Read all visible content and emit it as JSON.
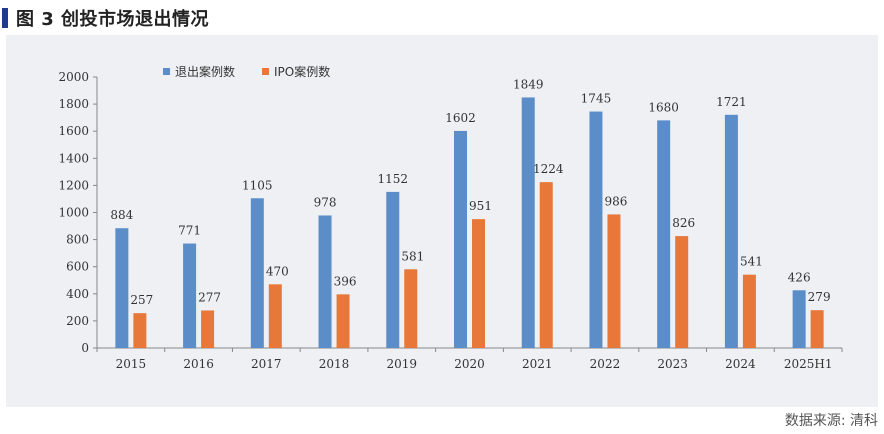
{
  "header": {
    "title": "图 3  创投市场退出情况"
  },
  "footer": {
    "source": "数据来源: 清科"
  },
  "colors": {
    "series1": "#5b8ec9",
    "series2": "#e7783a"
  },
  "chart_data": {
    "type": "bar",
    "title": "",
    "xlabel": "",
    "ylabel": "",
    "ylim": [
      0,
      2000
    ],
    "yticks": [
      0,
      200,
      400,
      600,
      800,
      1000,
      1200,
      1400,
      1600,
      1800,
      2000
    ],
    "legend_position": "top-left",
    "categories": [
      "2015",
      "2016",
      "2017",
      "2018",
      "2019",
      "2020",
      "2021",
      "2022",
      "2023",
      "2024",
      "2025H1"
    ],
    "series": [
      {
        "name": "退出案例数",
        "values": [
          884,
          771,
          1105,
          978,
          1152,
          1602,
          1849,
          1745,
          1680,
          1721,
          426
        ]
      },
      {
        "name": "IPO案例数",
        "values": [
          257,
          277,
          470,
          396,
          581,
          951,
          1224,
          986,
          826,
          541,
          279
        ]
      }
    ]
  }
}
